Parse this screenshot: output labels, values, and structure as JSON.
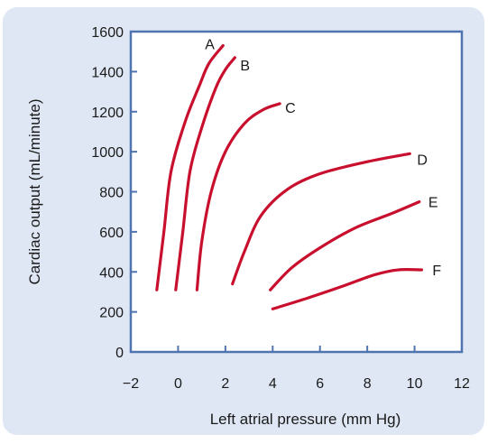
{
  "chart_data": {
    "type": "line",
    "title": "",
    "xlabel": "Left atrial pressure (mm Hg)",
    "ylabel": "Cardiac output (mL/minute)",
    "xlim": [
      -2,
      12
    ],
    "ylim": [
      0,
      1600
    ],
    "x_ticks": [
      -2,
      0,
      2,
      4,
      6,
      8,
      10,
      12
    ],
    "x_tick_labels": [
      "−2",
      "0",
      "2",
      "4",
      "6",
      "8",
      "10",
      "12"
    ],
    "y_ticks": [
      0,
      200,
      400,
      600,
      800,
      1000,
      1200,
      1400,
      1600
    ],
    "y_tick_labels": [
      "0",
      "200",
      "400",
      "600",
      "800",
      "1000",
      "1200",
      "1400",
      "1600"
    ],
    "grid": false,
    "colors": {
      "series": "#c8102e",
      "background": "#dfe7f4",
      "axis": "#4f74b0",
      "plot_bg": "#ffffff"
    },
    "series": [
      {
        "name": "A",
        "points": [
          [
            -0.9,
            310
          ],
          [
            -0.6,
            600
          ],
          [
            -0.3,
            900
          ],
          [
            0.3,
            1150
          ],
          [
            0.9,
            1330
          ],
          [
            1.3,
            1440
          ],
          [
            1.9,
            1530
          ]
        ]
      },
      {
        "name": "B",
        "points": [
          [
            -0.1,
            310
          ],
          [
            0.2,
            600
          ],
          [
            0.5,
            900
          ],
          [
            1.0,
            1120
          ],
          [
            1.6,
            1320
          ],
          [
            2.0,
            1410
          ],
          [
            2.4,
            1470
          ]
        ]
      },
      {
        "name": "C",
        "points": [
          [
            0.8,
            310
          ],
          [
            1.0,
            550
          ],
          [
            1.4,
            800
          ],
          [
            2.0,
            1000
          ],
          [
            2.8,
            1140
          ],
          [
            3.6,
            1210
          ],
          [
            4.3,
            1240
          ]
        ]
      },
      {
        "name": "D",
        "points": [
          [
            2.3,
            340
          ],
          [
            2.8,
            500
          ],
          [
            3.5,
            680
          ],
          [
            4.6,
            810
          ],
          [
            6.0,
            890
          ],
          [
            8.0,
            950
          ],
          [
            9.8,
            990
          ]
        ]
      },
      {
        "name": "E",
        "points": [
          [
            3.9,
            310
          ],
          [
            4.8,
            420
          ],
          [
            6.0,
            520
          ],
          [
            7.5,
            620
          ],
          [
            9.0,
            690
          ],
          [
            10.2,
            750
          ]
        ]
      },
      {
        "name": "F",
        "points": [
          [
            4.0,
            215
          ],
          [
            5.5,
            270
          ],
          [
            7.0,
            330
          ],
          [
            8.3,
            385
          ],
          [
            9.3,
            410
          ],
          [
            10.3,
            410
          ]
        ]
      }
    ]
  }
}
